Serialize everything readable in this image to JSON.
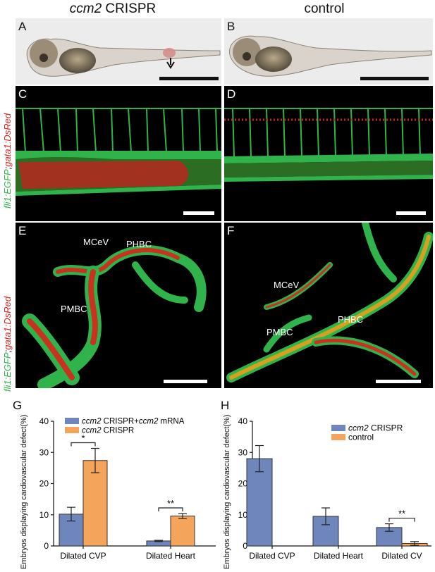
{
  "columns": {
    "left_title_gene": "ccm2",
    "left_title_rest": " CRISPR",
    "right_title": "control"
  },
  "panels": {
    "A": "A",
    "B": "B",
    "C": "C",
    "D": "D",
    "E": "E",
    "F": "F",
    "G": "G",
    "H": "H"
  },
  "side_label": {
    "part1": "fli1:EGFP",
    "sep": ";",
    "part2": "gata1:DsRed"
  },
  "vessels": {
    "E": [
      "MCeV",
      "PHBC",
      "PMBC"
    ],
    "F": [
      "MCeV",
      "PMBC",
      "PHBC"
    ]
  },
  "colors": {
    "blue": "#6f86bd",
    "orange": "#f5a55b",
    "green_fluor": "#2fb34a",
    "red_fluor": "#e0211d"
  },
  "chart_data": [
    {
      "id": "G",
      "type": "bar",
      "ylabel": "Embryos displaying cardiovascular defect(%)",
      "ylim": [
        0,
        40
      ],
      "yticks": [
        0,
        10,
        20,
        30,
        40
      ],
      "categories": [
        "Dilated CVP",
        "Dilated Heart"
      ],
      "series": [
        {
          "name": "ccm2 CRISPR+ccm2 mRNA",
          "color": "#6f86bd",
          "values": [
            10.2,
            1.6
          ],
          "errors": [
            2.2,
            0.2
          ]
        },
        {
          "name": "ccm2 CRISPR",
          "color": "#f5a55b",
          "values": [
            27.4,
            9.6
          ],
          "errors": [
            3.9,
            0.8
          ]
        }
      ],
      "significance": [
        "*",
        "**"
      ],
      "legend": "top-left"
    },
    {
      "id": "H",
      "type": "bar",
      "ylabel": "Embryos displaying cardiovascular defect(%)",
      "ylim": [
        0,
        40
      ],
      "yticks": [
        0,
        10,
        20,
        30,
        40
      ],
      "categories": [
        "Dilated CVP",
        "Dilated Heart",
        "Dilated CV"
      ],
      "series": [
        {
          "name": "ccm2 CRISPR",
          "color": "#6f86bd",
          "values": [
            28.0,
            9.5,
            5.9
          ],
          "errors": [
            4.2,
            2.7,
            1.2
          ]
        },
        {
          "name": "control",
          "color": "#f5a55b",
          "values": [
            0,
            0,
            0.8
          ],
          "errors": [
            0,
            0,
            0.6
          ]
        }
      ],
      "significance": [
        "",
        "",
        "**"
      ],
      "legend": "top-right"
    }
  ]
}
